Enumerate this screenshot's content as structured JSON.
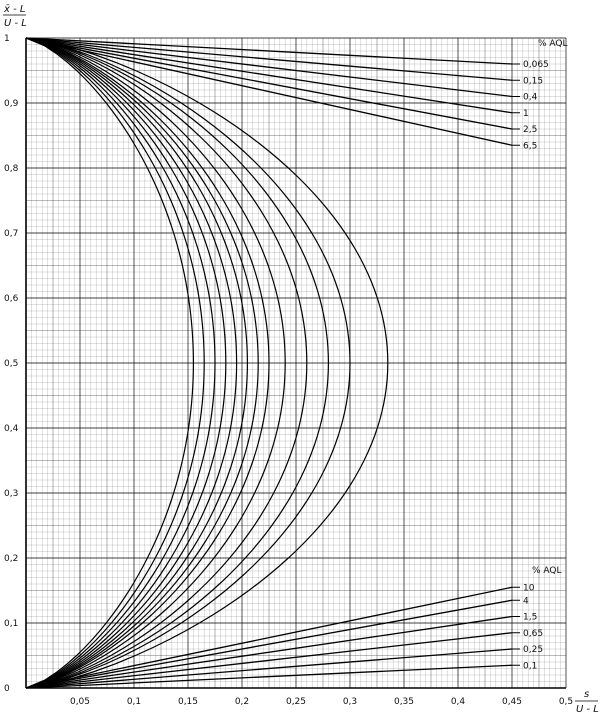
{
  "chart_data": {
    "type": "line",
    "y_axis_label": {
      "numerator": "x̄ - L",
      "denominator": "U - L"
    },
    "x_axis_label": {
      "numerator": "s",
      "denominator": "U - L"
    },
    "xlim": [
      0,
      0.5
    ],
    "ylim": [
      0,
      1
    ],
    "x_ticks": [
      {
        "value": 0.05,
        "label": "0,05"
      },
      {
        "value": 0.1,
        "label": "0,1"
      },
      {
        "value": 0.15,
        "label": "0,15"
      },
      {
        "value": 0.2,
        "label": "0,2"
      },
      {
        "value": 0.25,
        "label": "0,25"
      },
      {
        "value": 0.3,
        "label": "0,3"
      },
      {
        "value": 0.35,
        "label": "0,35"
      },
      {
        "value": 0.4,
        "label": "0,4"
      },
      {
        "value": 0.45,
        "label": "0,45"
      },
      {
        "value": 0.5,
        "label": "0,5"
      }
    ],
    "y_ticks": [
      {
        "value": 0,
        "label": "0"
      },
      {
        "value": 0.1,
        "label": "0,1"
      },
      {
        "value": 0.2,
        "label": "0,2"
      },
      {
        "value": 0.3,
        "label": "0,3"
      },
      {
        "value": 0.4,
        "label": "0,4"
      },
      {
        "value": 0.5,
        "label": "0,5"
      },
      {
        "value": 0.6,
        "label": "0,6"
      },
      {
        "value": 0.7,
        "label": "0,7"
      },
      {
        "value": 0.8,
        "label": "0,8"
      },
      {
        "value": 0.9,
        "label": "0,9"
      },
      {
        "value": 1,
        "label": "1"
      }
    ],
    "grid": "fine graph paper",
    "series": [
      {
        "name": "0,065",
        "group": "upper",
        "points": [
          [
            0,
            1
          ],
          [
            0.45,
            0.96
          ]
        ]
      },
      {
        "name": "0,15",
        "group": "upper",
        "points": [
          [
            0,
            1
          ],
          [
            0.45,
            0.935
          ]
        ]
      },
      {
        "name": "0,4",
        "group": "upper",
        "points": [
          [
            0,
            1
          ],
          [
            0.45,
            0.91
          ]
        ]
      },
      {
        "name": "1",
        "group": "upper",
        "points": [
          [
            0,
            1
          ],
          [
            0.45,
            0.885
          ]
        ]
      },
      {
        "name": "2,5",
        "group": "upper",
        "points": [
          [
            0,
            1
          ],
          [
            0.45,
            0.86
          ]
        ]
      },
      {
        "name": "6,5",
        "group": "upper",
        "points": [
          [
            0,
            1
          ],
          [
            0.45,
            0.835
          ]
        ]
      },
      {
        "name": "10",
        "group": "lower",
        "points": [
          [
            0,
            0
          ],
          [
            0.45,
            0.155
          ]
        ]
      },
      {
        "name": "4",
        "group": "lower",
        "points": [
          [
            0,
            0
          ],
          [
            0.45,
            0.135
          ]
        ]
      },
      {
        "name": "1,5",
        "group": "lower",
        "points": [
          [
            0,
            0
          ],
          [
            0.45,
            0.11
          ]
        ]
      },
      {
        "name": "0,65",
        "group": "lower",
        "points": [
          [
            0,
            0
          ],
          [
            0.45,
            0.085
          ]
        ]
      },
      {
        "name": "0,25",
        "group": "lower",
        "points": [
          [
            0,
            0
          ],
          [
            0.45,
            0.06
          ]
        ]
      },
      {
        "name": "0,1",
        "group": "lower",
        "points": [
          [
            0,
            0
          ],
          [
            0.45,
            0.035
          ]
        ]
      }
    ],
    "acceptance_curves": [
      {
        "max_x": 0.155
      },
      {
        "max_x": 0.165
      },
      {
        "max_x": 0.175
      },
      {
        "max_x": 0.185
      },
      {
        "max_x": 0.195
      },
      {
        "max_x": 0.205
      },
      {
        "max_x": 0.215
      },
      {
        "max_x": 0.225
      },
      {
        "max_x": 0.24
      },
      {
        "max_x": 0.26
      },
      {
        "max_x": 0.28
      },
      {
        "max_x": 0.3
      },
      {
        "max_x": 0.335
      }
    ],
    "legend_upper": {
      "title": "% AQL",
      "placement": "top-right",
      "entries": [
        "0,065",
        "0,15",
        "0,4",
        "1",
        "2,5",
        "6,5"
      ]
    },
    "legend_lower": {
      "title": "% AQL",
      "placement": "bottom-right",
      "entries": [
        "10",
        "4",
        "1,5",
        "0,65",
        "0,25",
        "0,1"
      ]
    }
  }
}
